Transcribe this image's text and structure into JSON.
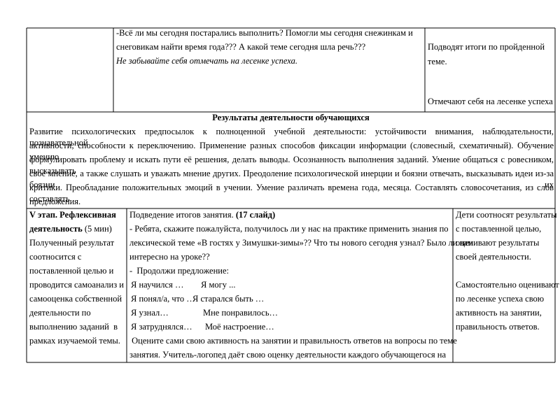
{
  "table": {
    "row1": {
      "activity": [
        "-Всё ли мы сегодня постарались выполнить? Помогли мы сегодня снежинкам и",
        "снеговикам найти время года??? А какой теме сегодня шла речь???"
      ],
      "reminder": "Не забывайте себя отмечать на лесенке успеха.",
      "student_actions": [
        "Подводят итоги по пройденной",
        "теме."
      ],
      "student_mark": "Отмечают себя на лесенке успеха"
    },
    "results": {
      "title": "Результаты деятельности обучающихся",
      "lines": [
        "Развитие психологических предпосылок к полноценной учебной деятельности: устойчивости внимания, наблюдательности, познавательной",
        "активности, способности к переключению. Применение разных способов фиксации информации (словесный, схематичный). Обучение умению",
        "формулировать проблему и искать  пути её решения, делать выводы. Осознанность выполнения заданий. Умение общаться с  ровесником, высказывать",
        "своё мнение, а также слушать и уважать мнение других. Преодоление психологической инерции и боязни отвечать, высказывать идеи из-за боязни их",
        "критики. Преобладание положительных эмоций в учении. Умение различать времена года, месяца. Составлять словосочетания, из слов составлять"
      ],
      "last_line": "предложения."
    },
    "stage": {
      "title": "V этап. Рефлексивная",
      "title2": "деятельность",
      "duration": " (5 мин)",
      "lines": [
        "Полученный результат",
        "соотносится с",
        "поставленной целью и",
        "проводится самоанализ и",
        "самооценка собственной",
        "деятельности по",
        "выполнению заданий  в",
        "рамках изучаемой темы."
      ]
    },
    "teacher": {
      "heading": "Подведение итогов занятия. ",
      "slide": "(17 слайд)",
      "lines": [
        "- Ребята, скажите пожалуйста, получилось ли у нас на практике применить знания по",
        "лексической теме «В гостях у Зимушки-зимы»?? Что ты нового сегодня узнал? Было ли вам",
        "интересно на уроке??",
        "-  Продолжи предложение:"
      ],
      "phrases": [
        [
          "Я научился …",
          "Я могу ..."
        ],
        [
          "Я понял/а, что …",
          "Я старался быть …"
        ],
        [
          "Я узнал…",
          "Мне понравилось…"
        ],
        [
          "Я затруднялся…",
          "Моё настроение…"
        ]
      ],
      "closing": [
        " Оцените сами свою активность на занятии и правильность ответов на вопросы по теме",
        "занятия. Учитель-логопед даёт свою оценку деятельности каждого обучающегося на"
      ]
    },
    "students": {
      "part1": [
        "Дети соотносят результаты",
        "с поставленной целью,",
        "оценивают результаты",
        "своей деятельности."
      ],
      "part2": [
        "Самостоятельно оценивают",
        "по лесенке успеха свою",
        "активность на занятии,",
        "правильность ответов."
      ]
    }
  }
}
